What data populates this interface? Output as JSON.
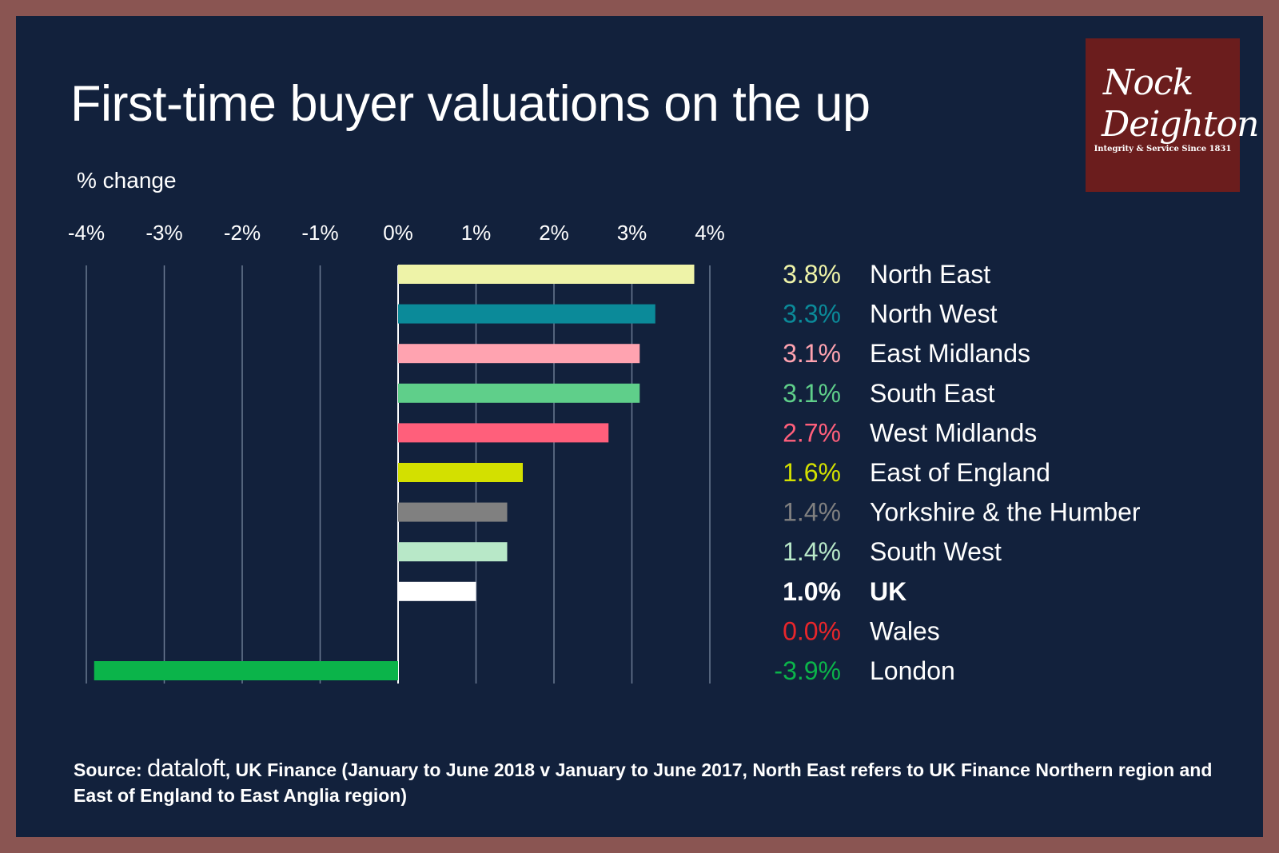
{
  "title": "First-time buyer valuations on the up",
  "logo": {
    "line1": "Nock",
    "line2": "Deighton",
    "tagline": "Integrity & Service Since 1831"
  },
  "source": {
    "prefix": "Source: ",
    "brand": "dataloft",
    "rest": ", UK Finance (January to June 2018 v January to June 2017, North East refers to UK Finance Northern region and East of England to East Anglia region)"
  },
  "chart_data": {
    "type": "bar",
    "orientation": "horizontal",
    "title": "First-time buyer valuations on the up",
    "xlabel": "% change",
    "xlim": [
      -4,
      4
    ],
    "ticks": [
      -4,
      -3,
      -2,
      -1,
      0,
      1,
      2,
      3,
      4
    ],
    "tick_labels": [
      "-4%",
      "-3%",
      "-2%",
      "-1%",
      "0%",
      "1%",
      "2%",
      "3%",
      "4%"
    ],
    "grid": true,
    "bars": [
      {
        "category": "North East",
        "value": 3.8,
        "label": "3.8%",
        "color": "#eef3a8",
        "bold": false
      },
      {
        "category": "North West",
        "value": 3.3,
        "label": "3.3%",
        "color": "#0b8a99",
        "bold": false
      },
      {
        "category": "East Midlands",
        "value": 3.1,
        "label": "3.1%",
        "color": "#ffa3b0",
        "bold": false
      },
      {
        "category": "South East",
        "value": 3.1,
        "label": "3.1%",
        "color": "#5fcf8a",
        "bold": false
      },
      {
        "category": "West Midlands",
        "value": 2.7,
        "label": "2.7%",
        "color": "#ff5f7b",
        "bold": false
      },
      {
        "category": "East of England",
        "value": 1.6,
        "label": "1.6%",
        "color": "#d3e000",
        "bold": false
      },
      {
        "category": "Yorkshire & the Humber",
        "value": 1.4,
        "label": "1.4%",
        "color": "#808080",
        "bold": false
      },
      {
        "category": "South West",
        "value": 1.4,
        "label": "1.4%",
        "color": "#b8e8c8",
        "bold": false
      },
      {
        "category": "UK",
        "value": 1.0,
        "label": "1.0%",
        "color": "#ffffff",
        "bold": true
      },
      {
        "category": "Wales",
        "value": 0.0,
        "label": "0.0%",
        "color": "#e8262b",
        "bold": false
      },
      {
        "category": "London",
        "value": -3.9,
        "label": "-3.9%",
        "color": "#0bb44a",
        "bold": false
      }
    ]
  }
}
